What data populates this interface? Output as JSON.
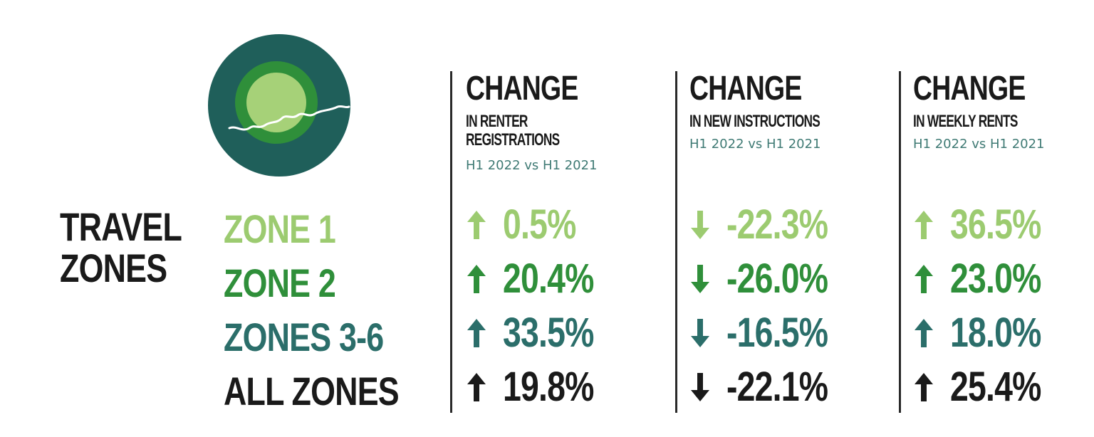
{
  "logo": {
    "icon": "london-zones-map-icon",
    "colors": {
      "outer": "#1f5f5a",
      "middle": "#2f8f3a",
      "inner": "#a6d178",
      "river": "#ffffff"
    }
  },
  "row_header": {
    "line1": "TRAVEL",
    "line2": "ZONES"
  },
  "zones": [
    {
      "label": "ZONE 1",
      "color": "#9ccb70"
    },
    {
      "label": "ZONE 2",
      "color": "#2f8f3a"
    },
    {
      "label": "ZONES 3-6",
      "color": "#2b6e6a"
    },
    {
      "label": "ALL ZONES",
      "color": "#1a1a1a"
    }
  ],
  "columns": [
    {
      "title": "CHANGE",
      "subtitle_line1": "IN RENTER",
      "subtitle_line2": "REGISTRATIONS",
      "period": "H1 2022 vs H1 2021",
      "values": [
        {
          "text": "0.5%",
          "direction": "up"
        },
        {
          "text": "20.4%",
          "direction": "up"
        },
        {
          "text": "33.5%",
          "direction": "up"
        },
        {
          "text": "19.8%",
          "direction": "up"
        }
      ]
    },
    {
      "title": "CHANGE",
      "subtitle_line1": "IN NEW INSTRUCTIONS",
      "subtitle_line2": "",
      "period": "H1 2022 vs H1 2021",
      "values": [
        {
          "text": "-22.3%",
          "direction": "down"
        },
        {
          "text": "-26.0%",
          "direction": "down"
        },
        {
          "text": "-16.5%",
          "direction": "down"
        },
        {
          "text": "-22.1%",
          "direction": "down"
        }
      ]
    },
    {
      "title": "CHANGE",
      "subtitle_line1": "IN WEEKLY RENTS",
      "subtitle_line2": "",
      "period": "H1 2022 vs H1 2021",
      "values": [
        {
          "text": "36.5%",
          "direction": "up"
        },
        {
          "text": "23.0%",
          "direction": "up"
        },
        {
          "text": "18.0%",
          "direction": "up"
        },
        {
          "text": "25.4%",
          "direction": "up"
        }
      ]
    }
  ]
}
